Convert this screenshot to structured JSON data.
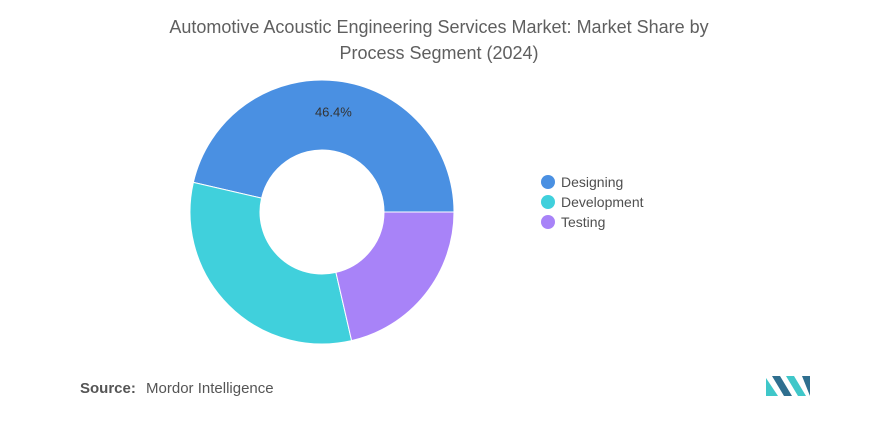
{
  "chart_data": {
    "type": "pie",
    "title": "Automotive Acoustic Engineering Services Market: Market Share by Process Segment (2024)",
    "title_lines": [
      "Automotive Acoustic Engineering Services Market: Market Share by",
      "Process Segment (2024)"
    ],
    "categories": [
      "Designing",
      "Development",
      "Testing"
    ],
    "values": [
      46.4,
      32.2,
      21.4
    ],
    "colors": [
      "#4a90e2",
      "#40d0dc",
      "#a883f8"
    ],
    "data_labels": [
      "46.4%",
      "",
      ""
    ],
    "legend_position": "right",
    "donut": true
  },
  "source": {
    "label": "Source:",
    "text": "Mordor Intelligence"
  },
  "logo": {
    "icon": "mordor-intelligence-logo",
    "colors": [
      "#2f6f8f",
      "#3fc7c9"
    ]
  }
}
